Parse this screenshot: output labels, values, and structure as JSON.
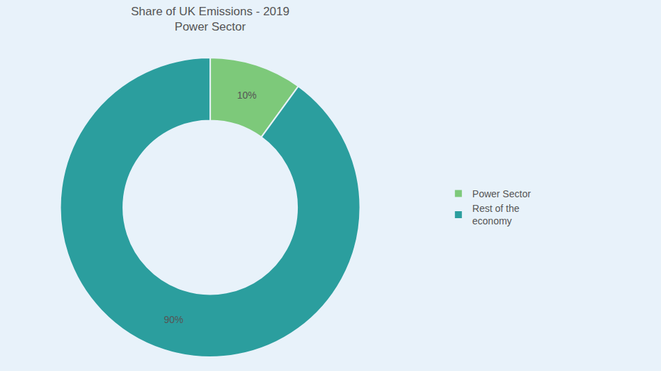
{
  "chart_data": {
    "type": "pie",
    "title": "Share of UK Emissions - 2019\nPower Sector",
    "categories": [
      "Power Sector",
      "Rest of the\neconomy"
    ],
    "values": [
      10,
      90
    ],
    "value_labels": [
      "10%",
      "90%"
    ],
    "colors": [
      "#7DC97A",
      "#2B9E9E"
    ],
    "data_labels": true,
    "legend": "right"
  }
}
